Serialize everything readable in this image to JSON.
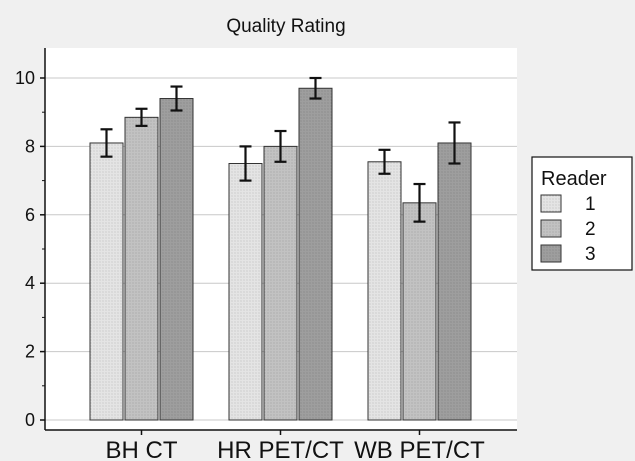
{
  "chart_data": {
    "type": "bar",
    "title": "Quality Rating",
    "xlabel": "",
    "ylabel": "",
    "categories": [
      "BH CT",
      "HR PET/CT",
      "WB PET/CT"
    ],
    "series": [
      {
        "name": "1",
        "values": [
          8.1,
          7.5,
          7.55
        ],
        "errors": [
          0.4,
          0.5,
          0.35
        ]
      },
      {
        "name": "2",
        "values": [
          8.85,
          8.0,
          6.35
        ],
        "errors": [
          0.25,
          0.45,
          0.55
        ]
      },
      {
        "name": "3",
        "values": [
          9.4,
          9.7,
          8.1
        ],
        "errors": [
          0.35,
          0.3,
          0.6
        ]
      }
    ],
    "ylim": [
      0,
      10
    ],
    "yticks": [
      "0",
      "2",
      "4",
      "6",
      "8",
      "10"
    ],
    "grid": true,
    "legend": {
      "title": "Reader",
      "placement": "right"
    },
    "colors": {
      "background": "#f0f0f0",
      "plot_background": "#ffffff",
      "grid": "#c8c8c8",
      "axis": "#111111",
      "series": [
        "#e4e4e4",
        "#c2c2c2",
        "#9e9e9e"
      ]
    }
  }
}
